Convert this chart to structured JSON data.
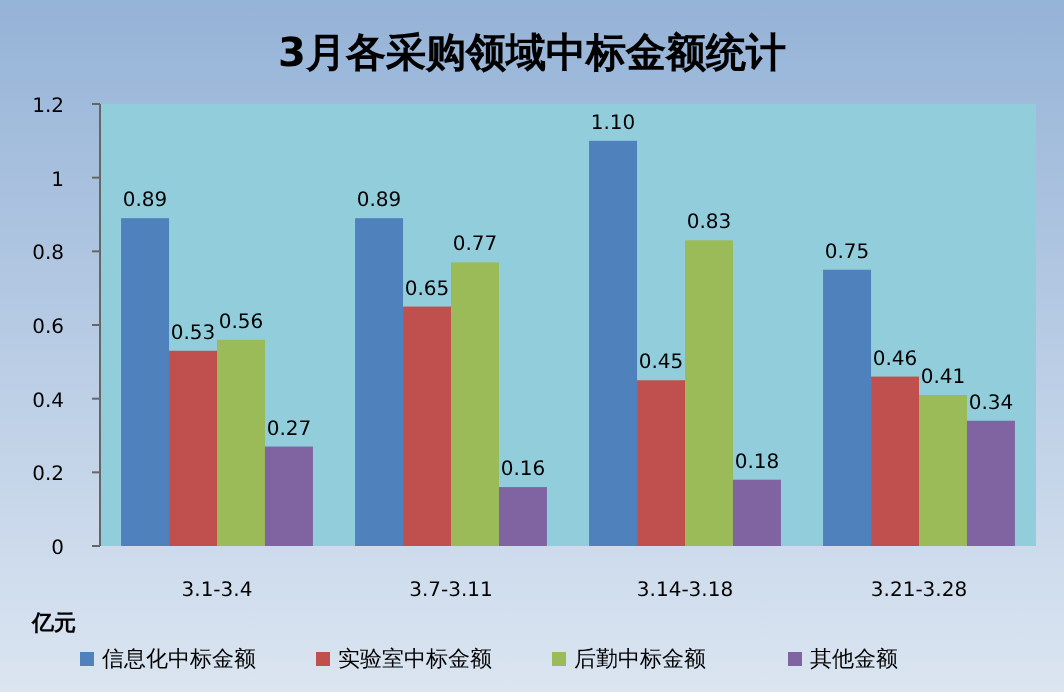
{
  "chart_data": {
    "type": "bar",
    "title": "3月各采购领域中标金额统计",
    "ylabel": "亿元",
    "categories": [
      "3.1-3.4",
      "3.7-3.11",
      "3.14-3.18",
      "3.21-3.28"
    ],
    "series": [
      {
        "name": "信息化中标金额",
        "color": "#4f81bd",
        "values": [
          0.89,
          0.89,
          1.1,
          0.75
        ],
        "value_labels": [
          "0.89",
          "0.89",
          "1.10",
          "0.75"
        ]
      },
      {
        "name": "实验室中标金额",
        "color": "#c0504d",
        "values": [
          0.53,
          0.65,
          0.45,
          0.46
        ],
        "value_labels": [
          "0.53",
          "0.65",
          "0.45",
          "0.46"
        ]
      },
      {
        "name": "后勤中标金额",
        "color": "#9bbb59",
        "values": [
          0.56,
          0.77,
          0.83,
          0.41
        ],
        "value_labels": [
          "0.56",
          "0.77",
          "0.83",
          "0.41"
        ]
      },
      {
        "name": "其他金额",
        "color": "#8064a2",
        "values": [
          0.27,
          0.16,
          0.18,
          0.34
        ],
        "value_labels": [
          "0.27",
          "0.16",
          "0.18",
          "0.34"
        ]
      }
    ],
    "ylim": [
      0,
      1.2
    ],
    "yticks": [
      0,
      0.2,
      0.4,
      0.6,
      0.8,
      1,
      1.2
    ],
    "grid": false,
    "legend": "bottom"
  }
}
